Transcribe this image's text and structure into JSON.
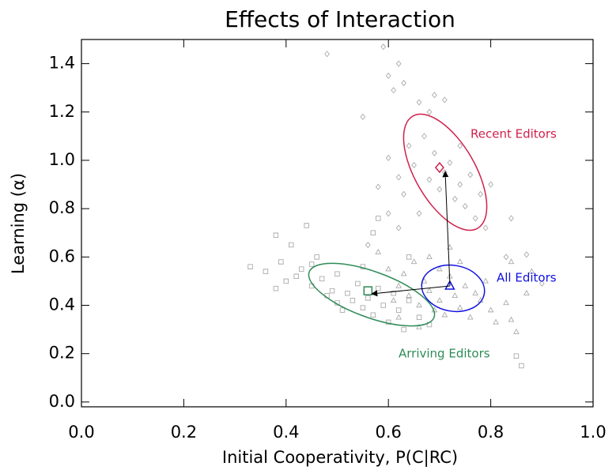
{
  "chart_data": {
    "type": "scatter",
    "title": "Effects of Interaction",
    "x_label": "Initial Cooperativity, P(C|RC)",
    "y_label": "Learning (α)",
    "xlim": [
      0,
      1
    ],
    "ylim": [
      -0.02,
      1.5
    ],
    "xticks": [
      {
        "value": 0,
        "label": "0.0"
      },
      0.2,
      0.4,
      0.6,
      0.8,
      {
        "value": 1,
        "label": "1.0"
      }
    ],
    "yticks": [
      {
        "value": 0,
        "label": "0.0"
      },
      0.2,
      0.4,
      0.6,
      0.8,
      {
        "value": 1,
        "label": "1.0"
      },
      1.2,
      1.4
    ],
    "annotations": [
      "Recent Editors",
      "All Editors",
      "Arriving Editors"
    ],
    "series": [
      {
        "marker": "square",
        "color": "#aaaaaa",
        "x": [
          0.33,
          0.36,
          0.38,
          0.38,
          0.39,
          0.4,
          0.41,
          0.42,
          0.43,
          0.44,
          0.45,
          0.45,
          0.46,
          0.47,
          0.48,
          0.49,
          0.5,
          0.5,
          0.51,
          0.52,
          0.53,
          0.54,
          0.55,
          0.55,
          0.56,
          0.57,
          0.58,
          0.58,
          0.59,
          0.6,
          0.61,
          0.62,
          0.63,
          0.64,
          0.66,
          0.68,
          0.85,
          0.86,
          0.64,
          0.57
        ],
        "y": [
          0.56,
          0.54,
          0.47,
          0.69,
          0.58,
          0.5,
          0.65,
          0.52,
          0.55,
          0.73,
          0.57,
          0.48,
          0.6,
          0.51,
          0.44,
          0.46,
          0.41,
          0.53,
          0.38,
          0.45,
          0.42,
          0.49,
          0.39,
          0.56,
          0.43,
          0.36,
          0.47,
          0.76,
          0.4,
          0.33,
          0.45,
          0.38,
          0.3,
          0.42,
          0.35,
          0.32,
          0.19,
          0.15,
          0.6,
          0.7
        ]
      },
      {
        "marker": "triangle",
        "color": "#aaaaaa",
        "x": [
          0.58,
          0.6,
          0.62,
          0.63,
          0.64,
          0.65,
          0.66,
          0.67,
          0.68,
          0.69,
          0.7,
          0.7,
          0.71,
          0.72,
          0.73,
          0.74,
          0.75,
          0.76,
          0.77,
          0.78,
          0.8,
          0.81,
          0.83,
          0.84,
          0.85,
          0.87,
          0.88,
          0.84,
          0.68,
          0.72,
          0.62,
          0.66,
          0.74,
          0.79,
          0.61
        ],
        "y": [
          0.62,
          0.55,
          0.48,
          0.53,
          0.44,
          0.58,
          0.4,
          0.5,
          0.46,
          0.38,
          0.55,
          0.42,
          0.36,
          0.52,
          0.44,
          0.39,
          0.48,
          0.35,
          0.45,
          0.42,
          0.38,
          0.33,
          0.41,
          0.34,
          0.29,
          0.45,
          0.54,
          0.58,
          0.6,
          0.64,
          0.35,
          0.31,
          0.58,
          0.5,
          0.42
        ]
      },
      {
        "marker": "diamond",
        "color": "#aaaaaa",
        "x": [
          0.48,
          0.55,
          0.59,
          0.6,
          0.61,
          0.62,
          0.63,
          0.66,
          0.68,
          0.69,
          0.71,
          0.6,
          0.62,
          0.63,
          0.64,
          0.65,
          0.66,
          0.67,
          0.68,
          0.69,
          0.7,
          0.71,
          0.72,
          0.73,
          0.74,
          0.75,
          0.76,
          0.77,
          0.78,
          0.79,
          0.8,
          0.58,
          0.56,
          0.6,
          0.84,
          0.83,
          0.87,
          0.9,
          0.62,
          0.74
        ],
        "y": [
          1.44,
          1.18,
          1.47,
          1.35,
          1.29,
          1.4,
          1.32,
          1.24,
          1.2,
          1.27,
          1.25,
          1.01,
          0.93,
          0.86,
          1.06,
          0.98,
          0.78,
          1.1,
          0.92,
          1.03,
          0.88,
          0.95,
          0.99,
          0.84,
          0.9,
          0.81,
          0.94,
          0.76,
          0.86,
          0.72,
          0.9,
          0.89,
          0.65,
          0.78,
          0.76,
          0.6,
          0.61,
          0.49,
          0.72,
          1.06
        ]
      },
      {
        "marker": "square",
        "color": "#2e8b57",
        "x": [
          0.56
        ],
        "y": [
          0.46
        ]
      },
      {
        "marker": "triangle",
        "color": "#1010e0",
        "x": [
          0.72
        ],
        "y": [
          0.48
        ]
      },
      {
        "marker": "diamond",
        "color": "#d0204a",
        "x": [
          0.7
        ],
        "y": [
          0.97
        ]
      }
    ]
  }
}
